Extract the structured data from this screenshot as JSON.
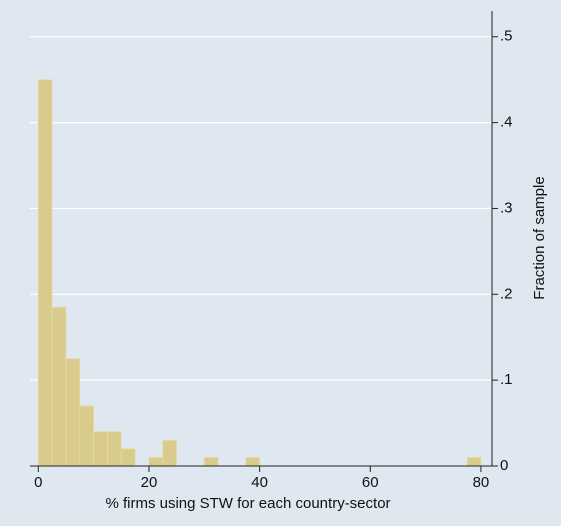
{
  "chart_data": {
    "type": "histogram",
    "x_label": "% firms using STW for each country-sector",
    "y_label": "Fraction of sample",
    "bins": [
      0,
      2.5,
      5,
      7.5,
      10,
      12.5,
      15,
      17.5,
      20,
      22.5,
      25,
      27.5,
      30,
      32.5,
      35,
      37.5,
      40,
      42.5,
      45,
      47.5,
      50,
      52.5,
      55,
      57.5,
      60,
      62.5,
      65,
      67.5,
      70,
      72.5,
      75,
      77.5,
      80
    ],
    "values": [
      0.45,
      0.185,
      0.125,
      0.07,
      0.04,
      0.04,
      0.02,
      0,
      0.01,
      0.03,
      0,
      0,
      0.01,
      0,
      0,
      0.01,
      0,
      0,
      0,
      0,
      0,
      0,
      0,
      0,
      0,
      0,
      0,
      0,
      0,
      0,
      0,
      0.01
    ],
    "color": "#d8cb8c",
    "xlim": [
      -1.5,
      82
    ],
    "xticks": [
      0,
      20,
      40,
      60,
      80
    ],
    "ylim": [
      0,
      0.53
    ],
    "yticks": [
      0,
      {
        "value": 0.1,
        "label": ".1"
      },
      {
        "value": 0.2,
        "label": ".2"
      },
      {
        "value": 0.3,
        "label": ".3"
      },
      {
        "value": 0.4,
        "label": ".4"
      },
      {
        "value": 0.5,
        "label": ".5"
      }
    ],
    "grid": true
  }
}
